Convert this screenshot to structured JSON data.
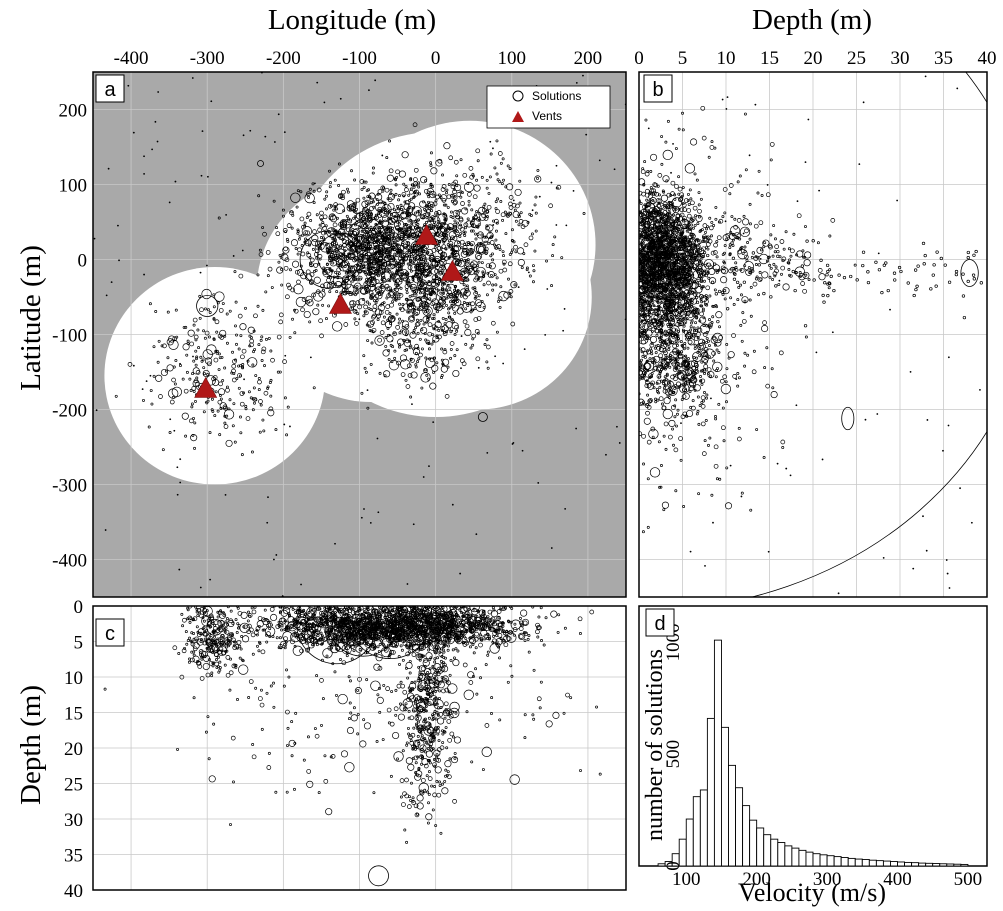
{
  "colors": {
    "panel_background": "#a9a9a9",
    "coverage": "#ffffff",
    "vent": "#b01818",
    "solution_stroke": "#000000",
    "grid": "#c9c9c9"
  },
  "chart_data": [
    {
      "panel": "a",
      "type": "scatter",
      "xlabel": "Longitude (m)",
      "ylabel": "Latitude (m)",
      "xlim": [
        -450,
        250
      ],
      "ylim": [
        -450,
        250
      ],
      "xticks": [
        -400,
        -300,
        -200,
        -100,
        0,
        100,
        200
      ],
      "yticks": [
        200,
        100,
        0,
        -100,
        -200,
        -300,
        -400
      ],
      "legend": {
        "position": "top-right",
        "solutions": "Solutions",
        "vents": "Vents"
      },
      "coverage_circles": [
        {
          "x": -290,
          "y": -155,
          "r": 145
        },
        {
          "x": -85,
          "y": -40,
          "r": 150
        },
        {
          "x": 0,
          "y": -20,
          "r": 190
        },
        {
          "x": 45,
          "y": 20,
          "r": 165
        },
        {
          "x": 55,
          "y": -50,
          "r": 150
        }
      ],
      "vents": [
        {
          "x": -302,
          "y": -172
        },
        {
          "x": -125,
          "y": -60
        },
        {
          "x": -12,
          "y": 32
        },
        {
          "x": 22,
          "y": -16
        }
      ],
      "clusters": [
        {
          "x": -50,
          "y": 10,
          "sx": 75,
          "sy": 45,
          "n": 1400
        },
        {
          "x": -20,
          "y": -60,
          "sx": 40,
          "sy": 55,
          "n": 450
        },
        {
          "x": -285,
          "y": -145,
          "sx": 45,
          "sy": 50,
          "n": 280
        },
        {
          "x": 20,
          "y": 50,
          "sx": 70,
          "sy": 50,
          "n": 350
        },
        {
          "x": -100,
          "y": 15,
          "sx": 35,
          "sy": 35,
          "n": 220
        }
      ],
      "big_circles": [
        {
          "x": -140,
          "y": 0,
          "r": 38
        },
        {
          "x": -125,
          "y": 5,
          "r": 30
        },
        {
          "x": -110,
          "y": 25,
          "r": 22
        },
        {
          "x": -90,
          "y": 30,
          "r": 25
        },
        {
          "x": -300,
          "y": -62,
          "r": 14
        },
        {
          "x": 62,
          "y": -210,
          "r": 6
        },
        {
          "x": -230,
          "y": 128,
          "r": 4
        }
      ]
    },
    {
      "panel": "b",
      "type": "scatter",
      "xlabel": "Depth (m)",
      "xlim": [
        0,
        40
      ],
      "ylim": [
        -450,
        250
      ],
      "xticks": [
        0,
        5,
        10,
        15,
        20,
        25,
        30,
        35,
        40
      ],
      "clusters": [
        {
          "x": 3,
          "y": 0,
          "sx": 2.2,
          "sy": 45,
          "n": 1500
        },
        {
          "x": 4,
          "y": -130,
          "sx": 2.5,
          "sy": 40,
          "n": 450
        },
        {
          "x": 12,
          "y": 0,
          "sx": 6,
          "sy": 25,
          "n": 200
        },
        {
          "x": 6,
          "y": -60,
          "sx": 5,
          "sy": 120,
          "n": 400
        }
      ],
      "big_circles": [
        {
          "x": 0.5,
          "y": -10,
          "r": 45
        },
        {
          "x": 38,
          "y": -18,
          "r": 1
        },
        {
          "x": 24,
          "y": -212,
          "r": 0.7
        }
      ]
    },
    {
      "panel": "c",
      "type": "scatter",
      "ylabel": "Depth (m)",
      "xlim": [
        -450,
        250
      ],
      "ylim": [
        0,
        40
      ],
      "yticks": [
        0,
        5,
        10,
        15,
        20,
        25,
        30,
        35,
        40
      ],
      "clusters": [
        {
          "x": -50,
          "y": 3,
          "sx": 85,
          "sy": 1.6,
          "n": 1800
        },
        {
          "x": -290,
          "y": 4.5,
          "sx": 20,
          "sy": 2.5,
          "n": 250
        },
        {
          "x": -10,
          "y": 15,
          "sx": 18,
          "sy": 7,
          "n": 400
        },
        {
          "x": -60,
          "y": 10,
          "sx": 120,
          "sy": 9,
          "n": 300
        }
      ],
      "big_circles": [
        {
          "x": -130,
          "y": 2.5,
          "r": 40
        },
        {
          "x": -95,
          "y": 2,
          "r": 36
        },
        {
          "x": -60,
          "y": 1.5,
          "r": 42
        },
        {
          "x": -20,
          "y": 2,
          "r": 25
        },
        {
          "x": -75,
          "y": 38,
          "r": 10
        },
        {
          "x": -290,
          "y": 3,
          "r": 8
        }
      ]
    },
    {
      "panel": "d",
      "type": "bar",
      "xlabel": "Velocity (m/s)",
      "ylabel": "number of solutions",
      "xlim": [
        40,
        520
      ],
      "ylim": [
        0,
        1100
      ],
      "xticks": [
        100,
        200,
        300,
        400,
        500
      ],
      "yticks": [
        0,
        500,
        1000
      ],
      "bin_width": 10,
      "bin_start": 60,
      "values": [
        10,
        20,
        55,
        120,
        210,
        310,
        340,
        660,
        1010,
        620,
        450,
        350,
        270,
        205,
        170,
        140,
        120,
        105,
        90,
        80,
        70,
        62,
        55,
        50,
        46,
        42,
        38,
        34,
        31,
        29,
        26,
        24,
        22,
        20,
        18,
        16,
        15,
        13,
        12,
        11,
        10,
        9,
        8,
        7
      ]
    }
  ],
  "panel_labels": [
    "a",
    "b",
    "c",
    "d"
  ]
}
